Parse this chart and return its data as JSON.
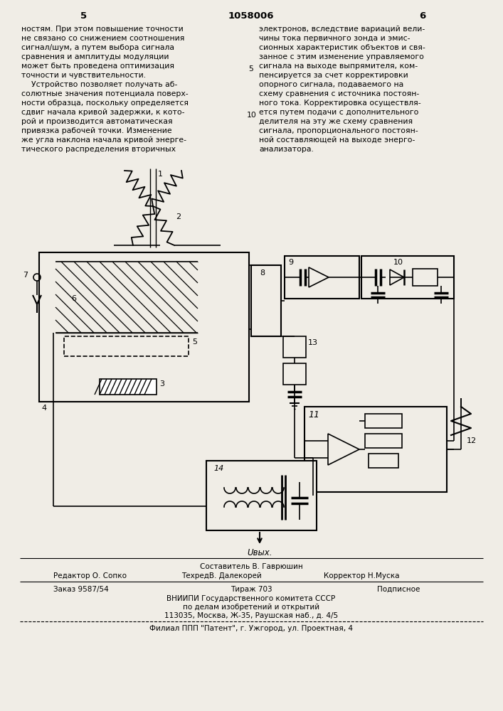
{
  "page_number": "1058006",
  "left_col_num": "5",
  "right_col_num": "6",
  "left_text": [
    "ностям. При этом повышение точности",
    "не связано со снижением соотношения",
    "сигнал/шум, а путем выбора сигнала",
    "сравнения и амплитуды модуляции",
    "может быть проведена оптимизация",
    "точности и чувствительности.",
    "    Устройство позволяет получать аб-",
    "солютные значения потенциала поверх-",
    "ности образца, поскольку определяется",
    "сдвиг начала кривой задержки, к кото-",
    "рой и производится автоматическая",
    "привязка рабочей точки. Изменение",
    "же угла наклона начала кривой энерге-",
    "тического распределения вторичных"
  ],
  "right_text": [
    "электронов, вследствие вариаций вели-",
    "чины тока первичного зонда и эмис-",
    "сионных характеристик объектов и свя-",
    "занное с этим изменение управляемого",
    "сигнала на выходе выпрямителя, ком-",
    "пенсируется за счет корректировки",
    "опорного сигнала, подаваемого на",
    "схему сравнения с источника постоян-",
    "ного тока. Корректировка осуществля-",
    "ется путем подачи с дополнительного",
    "делителя на эту же схему сравнения",
    "сигнала, пропорционального постоян-",
    "ной составляющей на выходе энерго-",
    "анализатора."
  ],
  "footer_composer": "Составитель В. Гаврюшин",
  "footer_editor": "Редактор О. Сопко",
  "footer_techred": "ТехредВ. Далекорей",
  "footer_corrector": "Корректор Н.Муска",
  "footer_order": "Заказ 9587/54",
  "footer_tirage": "Тираж 703",
  "footer_podpisnoe": "Подписное",
  "footer_vnipi": "ВНИИПИ Государственного комитета СССР",
  "footer_affairs": "по делам изобретений и открытий",
  "footer_address": "113035, Москва, Ж-35, Раушская наб., д. 4/5",
  "footer_filial": "Филиал ППП \"Патент\", г. Ужгород, ул. Проектная, 4",
  "bg_color": "#f0ede6"
}
